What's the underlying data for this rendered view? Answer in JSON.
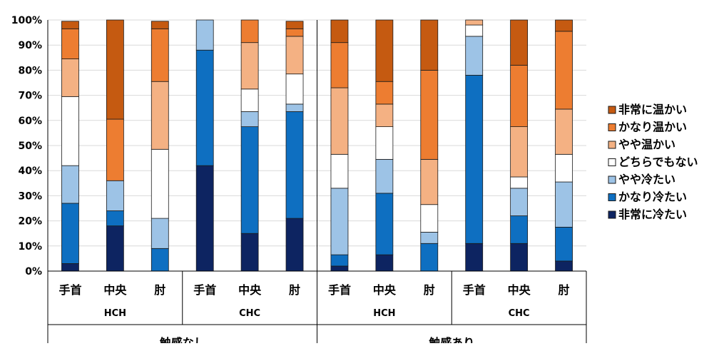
{
  "chart_data": {
    "type": "bar",
    "stacked": true,
    "percent": true,
    "ylim": [
      0,
      100
    ],
    "y_ticks": [
      "0%",
      "10%",
      "20%",
      "30%",
      "40%",
      "50%",
      "60%",
      "70%",
      "80%",
      "90%",
      "100%"
    ],
    "grid": true,
    "legend_position": "right",
    "categories": [
      "手首",
      "中央",
      "肘",
      "手首",
      "中央",
      "肘",
      "手首",
      "中央",
      "肘",
      "手首",
      "中央",
      "肘"
    ],
    "groups": [
      {
        "label": "HCH",
        "span": 3
      },
      {
        "label": "CHC",
        "span": 3
      },
      {
        "label": "HCH",
        "span": 3
      },
      {
        "label": "CHC",
        "span": 3
      }
    ],
    "outer_groups": [
      {
        "label": "触感なし",
        "span": 6
      },
      {
        "label": "触感あり",
        "span": 6
      }
    ],
    "series": [
      {
        "name": "非常に冷たい",
        "color": "#0d2461",
        "values": [
          3,
          18,
          0,
          42,
          15,
          21,
          2,
          6.5,
          0,
          11,
          11,
          4
        ]
      },
      {
        "name": "かなり冷たい",
        "color": "#0e6fc1",
        "values": [
          24,
          6,
          9,
          46,
          42.5,
          42.5,
          4.5,
          24.5,
          11,
          67,
          11,
          13.5
        ]
      },
      {
        "name": "やや冷たい",
        "color": "#9dc3e6",
        "values": [
          15,
          12,
          12,
          12,
          6,
          3,
          26.5,
          13.5,
          4.5,
          15.5,
          11,
          18
        ]
      },
      {
        "name": "どちらでもない",
        "color": "#ffffff",
        "values": [
          27.5,
          0,
          27.5,
          0,
          9,
          12,
          13.5,
          13,
          11,
          4.5,
          4.5,
          11
        ]
      },
      {
        "name": "やや温かい",
        "color": "#f4b183",
        "values": [
          15,
          0,
          27,
          0,
          18.5,
          15,
          26.5,
          9,
          18,
          2,
          20,
          18
        ]
      },
      {
        "name": "かなり温かい",
        "color": "#ed7d31",
        "values": [
          12,
          24.5,
          21,
          0,
          9,
          3,
          18,
          9,
          35.5,
          0,
          24.5,
          31
        ]
      },
      {
        "name": "非常に温かい",
        "color": "#c55a11",
        "values": [
          3,
          39.5,
          3,
          0,
          0,
          3,
          9,
          24.5,
          20,
          0,
          18,
          4.5
        ]
      }
    ]
  }
}
